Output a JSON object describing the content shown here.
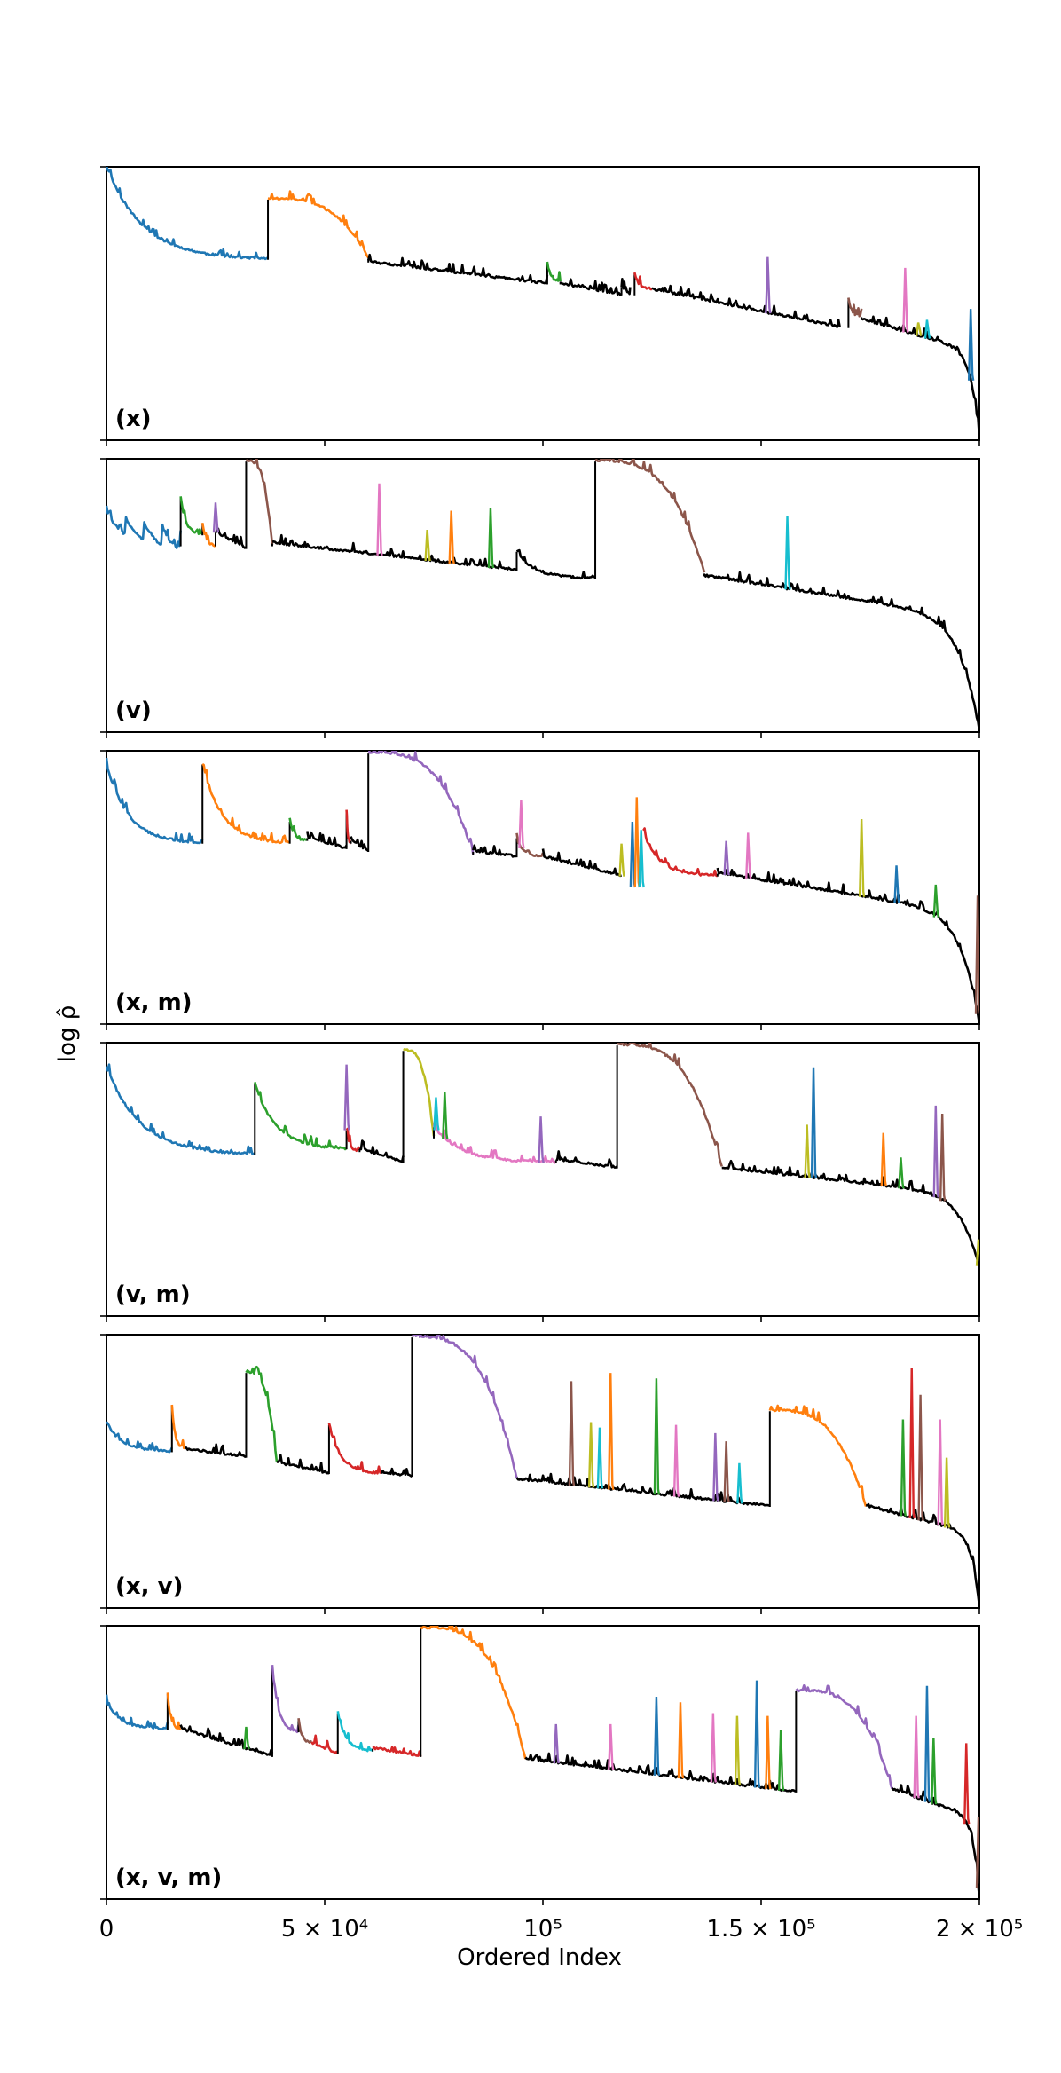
{
  "figure": {
    "ylabel": "log ρ̂",
    "xlabel": "Ordered Index"
  },
  "chart_data": {
    "type": "line",
    "title": "",
    "xlabel": "Ordered Index",
    "ylabel": "log ρ̂",
    "xlim": [
      0,
      200000
    ],
    "ylim": [
      0,
      1
    ],
    "y_ticks_labeled": false,
    "x_ticks": [
      {
        "value": 0,
        "label": "0"
      },
      {
        "value": 50000,
        "label": "5 × 10⁴"
      },
      {
        "value": 100000,
        "label": "10⁵"
      },
      {
        "value": 150000,
        "label": "1.5 × 10⁵"
      },
      {
        "value": 200000,
        "label": "2 × 10⁵"
      }
    ],
    "colors": {
      "blue": "#1f77b4",
      "orange": "#ff7f0e",
      "green": "#2ca02c",
      "red": "#d62728",
      "purple": "#9467bd",
      "brown": "#8c564b",
      "pink": "#e377c2",
      "olive": "#bcbd22",
      "cyan": "#17becf",
      "black": "#000000"
    },
    "panels": [
      {
        "label": "(x)",
        "segments": [
          {
            "color": "blue",
            "x0": 0,
            "x1": 37000,
            "y0": 1.0,
            "y1": 0.66,
            "shape": "decay"
          },
          {
            "color": "orange",
            "x0": 37000,
            "x1": 60000,
            "y0": 0.88,
            "y1": 0.66,
            "shape": "concave"
          },
          {
            "color": "black",
            "x0": 60000,
            "x1": 101000,
            "y0": 0.65,
            "y1": 0.57
          },
          {
            "color": "green",
            "x0": 101000,
            "x1": 104000,
            "y0": 0.65,
            "y1": 0.58,
            "shape": "decay"
          },
          {
            "color": "black",
            "x0": 104000,
            "x1": 118000,
            "y0": 0.57,
            "y1": 0.53
          },
          {
            "color": "black",
            "x0": 118000,
            "x1": 120000,
            "y0": 0.56,
            "y1": 0.53
          },
          {
            "color": "red",
            "x0": 121000,
            "x1": 125000,
            "y0": 0.61,
            "y1": 0.55,
            "shape": "decay"
          },
          {
            "color": "black",
            "x0": 125000,
            "x1": 168000,
            "y0": 0.55,
            "y1": 0.41
          },
          {
            "color": "brown",
            "x0": 170000,
            "x1": 173000,
            "y0": 0.52,
            "y1": 0.45,
            "shape": "decay"
          },
          {
            "color": "black",
            "x0": 173000,
            "x1": 200000,
            "y0": 0.44,
            "y1": 0.0,
            "shape": "tail"
          }
        ],
        "spikes": [
          {
            "color": "purple",
            "x": 151500,
            "y": 0.67
          },
          {
            "color": "pink",
            "x": 183000,
            "y": 0.63
          },
          {
            "color": "olive",
            "x": 186000,
            "y": 0.43
          },
          {
            "color": "cyan",
            "x": 188000,
            "y": 0.44
          },
          {
            "color": "blue",
            "x": 198000,
            "y": 0.48
          }
        ]
      },
      {
        "label": "(v)",
        "segments": [
          {
            "color": "blue",
            "x0": 0,
            "x1": 17000,
            "y0": 0.82,
            "y1": 0.68,
            "shape": "sawtooth"
          },
          {
            "color": "green",
            "x0": 17000,
            "x1": 22000,
            "y0": 0.86,
            "y1": 0.72,
            "shape": "decay"
          },
          {
            "color": "orange",
            "x0": 22000,
            "x1": 25000,
            "y0": 0.76,
            "y1": 0.68,
            "shape": "decay"
          },
          {
            "color": "black",
            "x0": 25000,
            "x1": 32000,
            "y0": 0.73,
            "y1": 0.67
          },
          {
            "color": "brown",
            "x0": 32000,
            "x1": 38000,
            "y0": 0.99,
            "y1": 0.68,
            "shape": "concave"
          },
          {
            "color": "black",
            "x0": 38000,
            "x1": 94000,
            "y0": 0.69,
            "y1": 0.59
          },
          {
            "color": "black",
            "x0": 94000,
            "x1": 112000,
            "y0": 0.66,
            "y1": 0.56,
            "shape": "decay"
          },
          {
            "color": "brown",
            "x0": 112000,
            "x1": 137000,
            "y0": 0.99,
            "y1": 0.58,
            "shape": "concave"
          },
          {
            "color": "black",
            "x0": 137000,
            "x1": 200000,
            "y0": 0.57,
            "y1": 0.0,
            "shape": "tail"
          }
        ],
        "spikes": [
          {
            "color": "purple",
            "x": 25000,
            "y": 0.84
          },
          {
            "color": "pink",
            "x": 62500,
            "y": 0.91
          },
          {
            "color": "olive",
            "x": 73500,
            "y": 0.74
          },
          {
            "color": "orange",
            "x": 79000,
            "y": 0.81
          },
          {
            "color": "green",
            "x": 88000,
            "y": 0.82
          },
          {
            "color": "cyan",
            "x": 156000,
            "y": 0.79
          }
        ]
      },
      {
        "label": "(x, m)",
        "segments": [
          {
            "color": "blue",
            "x0": 0,
            "x1": 22000,
            "y0": 0.95,
            "y1": 0.66,
            "shape": "decay"
          },
          {
            "color": "orange",
            "x0": 22000,
            "x1": 42000,
            "y0": 0.95,
            "y1": 0.66,
            "shape": "decay"
          },
          {
            "color": "green",
            "x0": 42000,
            "x1": 46000,
            "y0": 0.74,
            "y1": 0.67,
            "shape": "decay"
          },
          {
            "color": "black",
            "x0": 46000,
            "x1": 55000,
            "y0": 0.68,
            "y1": 0.64
          },
          {
            "color": "red",
            "x0": 55000,
            "x1": 56000,
            "y0": 0.78,
            "y1": 0.66,
            "shape": "decay"
          },
          {
            "color": "black",
            "x0": 56000,
            "x1": 60000,
            "y0": 0.67,
            "y1": 0.63
          },
          {
            "color": "purple",
            "x0": 60000,
            "x1": 84000,
            "y0": 0.99,
            "y1": 0.62,
            "shape": "concave"
          },
          {
            "color": "black",
            "x0": 84000,
            "x1": 94000,
            "y0": 0.63,
            "y1": 0.61
          },
          {
            "color": "brown",
            "x0": 94000,
            "x1": 100000,
            "y0": 0.68,
            "y1": 0.61,
            "shape": "decay"
          },
          {
            "color": "black",
            "x0": 100000,
            "x1": 118000,
            "y0": 0.61,
            "y1": 0.54
          },
          {
            "color": "red",
            "x0": 123000,
            "x1": 140000,
            "y0": 0.7,
            "y1": 0.54,
            "shape": "decay"
          },
          {
            "color": "black",
            "x0": 140000,
            "x1": 200000,
            "y0": 0.55,
            "y1": 0.0,
            "shape": "tail"
          }
        ],
        "spikes": [
          {
            "color": "pink",
            "x": 95000,
            "y": 0.82
          },
          {
            "color": "olive",
            "x": 118000,
            "y": 0.66
          },
          {
            "color": "blue",
            "x": 120500,
            "y": 0.74
          },
          {
            "color": "orange",
            "x": 121500,
            "y": 0.83
          },
          {
            "color": "cyan",
            "x": 122500,
            "y": 0.71
          },
          {
            "color": "purple",
            "x": 142000,
            "y": 0.67
          },
          {
            "color": "pink",
            "x": 147000,
            "y": 0.7
          },
          {
            "color": "olive",
            "x": 173000,
            "y": 0.75
          },
          {
            "color": "blue",
            "x": 181000,
            "y": 0.58
          },
          {
            "color": "green",
            "x": 190000,
            "y": 0.51
          },
          {
            "color": "brown",
            "x": 199600,
            "y": 0.47
          }
        ]
      },
      {
        "label": "(v, m)",
        "segments": [
          {
            "color": "blue",
            "x0": 0,
            "x1": 34000,
            "y0": 0.91,
            "y1": 0.59,
            "shape": "decay"
          },
          {
            "color": "green",
            "x0": 34000,
            "x1": 55000,
            "y0": 0.85,
            "y1": 0.61,
            "shape": "decay"
          },
          {
            "color": "red",
            "x0": 55000,
            "x1": 58000,
            "y0": 0.68,
            "y1": 0.6,
            "shape": "decay"
          },
          {
            "color": "black",
            "x0": 58000,
            "x1": 68000,
            "y0": 0.61,
            "y1": 0.56
          },
          {
            "color": "olive",
            "x0": 68000,
            "x1": 75000,
            "y0": 0.97,
            "y1": 0.65,
            "shape": "concave"
          },
          {
            "color": "pink",
            "x0": 75000,
            "x1": 103000,
            "y0": 0.69,
            "y1": 0.56,
            "shape": "decay"
          },
          {
            "color": "black",
            "x0": 103000,
            "x1": 117000,
            "y0": 0.57,
            "y1": 0.54
          },
          {
            "color": "brown",
            "x0": 117000,
            "x1": 141000,
            "y0": 0.99,
            "y1": 0.54,
            "shape": "concave"
          },
          {
            "color": "black",
            "x0": 141000,
            "x1": 200000,
            "y0": 0.54,
            "y1": 0.17,
            "shape": "tail"
          }
        ],
        "spikes": [
          {
            "color": "purple",
            "x": 55000,
            "y": 0.92
          },
          {
            "color": "cyan",
            "x": 75500,
            "y": 0.8
          },
          {
            "color": "green",
            "x": 77500,
            "y": 0.82
          },
          {
            "color": "purple",
            "x": 99500,
            "y": 0.73
          },
          {
            "color": "olive",
            "x": 160500,
            "y": 0.7
          },
          {
            "color": "blue",
            "x": 162000,
            "y": 0.91
          },
          {
            "color": "orange",
            "x": 178000,
            "y": 0.67
          },
          {
            "color": "green",
            "x": 182000,
            "y": 0.58
          },
          {
            "color": "purple",
            "x": 190000,
            "y": 0.77
          },
          {
            "color": "brown",
            "x": 191500,
            "y": 0.74
          },
          {
            "color": "olive",
            "x": 199800,
            "y": 0.28
          }
        ]
      },
      {
        "label": "(x, v)",
        "segments": [
          {
            "color": "blue",
            "x0": 0,
            "x1": 15000,
            "y0": 0.68,
            "y1": 0.57,
            "shape": "decay"
          },
          {
            "color": "orange",
            "x0": 15000,
            "x1": 18000,
            "y0": 0.74,
            "y1": 0.58,
            "shape": "decay"
          },
          {
            "color": "black",
            "x0": 18000,
            "x1": 32000,
            "y0": 0.58,
            "y1": 0.55
          },
          {
            "color": "green",
            "x0": 32000,
            "x1": 39000,
            "y0": 0.86,
            "y1": 0.53,
            "shape": "concave"
          },
          {
            "color": "black",
            "x0": 39000,
            "x1": 51000,
            "y0": 0.53,
            "y1": 0.49
          },
          {
            "color": "red",
            "x0": 51000,
            "x1": 63000,
            "y0": 0.67,
            "y1": 0.49,
            "shape": "decay"
          },
          {
            "color": "black",
            "x0": 63000,
            "x1": 70000,
            "y0": 0.49,
            "y1": 0.48
          },
          {
            "color": "purple",
            "x0": 70000,
            "x1": 94000,
            "y0": 0.99,
            "y1": 0.47,
            "shape": "concave"
          },
          {
            "color": "black",
            "x0": 94000,
            "x1": 152000,
            "y0": 0.47,
            "y1": 0.37
          },
          {
            "color": "orange",
            "x0": 152000,
            "x1": 174000,
            "y0": 0.72,
            "y1": 0.37,
            "shape": "concave"
          },
          {
            "color": "black",
            "x0": 174000,
            "x1": 200000,
            "y0": 0.37,
            "y1": 0.0,
            "shape": "tail"
          }
        ],
        "spikes": [
          {
            "color": "brown",
            "x": 106500,
            "y": 0.83
          },
          {
            "color": "olive",
            "x": 111000,
            "y": 0.68
          },
          {
            "color": "cyan",
            "x": 113000,
            "y": 0.66
          },
          {
            "color": "orange",
            "x": 115500,
            "y": 0.86
          },
          {
            "color": "green",
            "x": 126000,
            "y": 0.84
          },
          {
            "color": "pink",
            "x": 130500,
            "y": 0.67
          },
          {
            "color": "purple",
            "x": 139500,
            "y": 0.64
          },
          {
            "color": "brown",
            "x": 142000,
            "y": 0.61
          },
          {
            "color": "cyan",
            "x": 145000,
            "y": 0.53
          },
          {
            "color": "green",
            "x": 182500,
            "y": 0.69
          },
          {
            "color": "red",
            "x": 184500,
            "y": 0.88
          },
          {
            "color": "brown",
            "x": 186500,
            "y": 0.78
          },
          {
            "color": "pink",
            "x": 191000,
            "y": 0.69
          },
          {
            "color": "olive",
            "x": 192500,
            "y": 0.55
          }
        ]
      },
      {
        "label": "(x, v, m)",
        "segments": [
          {
            "color": "blue",
            "x0": 0,
            "x1": 14000,
            "y0": 0.72,
            "y1": 0.62,
            "shape": "decay"
          },
          {
            "color": "orange",
            "x0": 14000,
            "x1": 17000,
            "y0": 0.75,
            "y1": 0.62,
            "shape": "decay"
          },
          {
            "color": "black",
            "x0": 17000,
            "x1": 38000,
            "y0": 0.62,
            "y1": 0.52
          },
          {
            "color": "purple",
            "x0": 38000,
            "x1": 44000,
            "y0": 0.85,
            "y1": 0.61,
            "shape": "decay"
          },
          {
            "color": "brown",
            "x0": 44000,
            "x1": 47000,
            "y0": 0.66,
            "y1": 0.57,
            "shape": "decay"
          },
          {
            "color": "red",
            "x0": 47000,
            "x1": 53000,
            "y0": 0.57,
            "y1": 0.53
          },
          {
            "color": "cyan",
            "x0": 53000,
            "x1": 61000,
            "y0": 0.68,
            "y1": 0.54,
            "shape": "decay"
          },
          {
            "color": "red",
            "x0": 61000,
            "x1": 72000,
            "y0": 0.55,
            "y1": 0.52
          },
          {
            "color": "orange",
            "x0": 72000,
            "x1": 96000,
            "y0": 0.99,
            "y1": 0.51,
            "shape": "concave"
          },
          {
            "color": "black",
            "x0": 96000,
            "x1": 158000,
            "y0": 0.51,
            "y1": 0.39
          },
          {
            "color": "purple",
            "x0": 158000,
            "x1": 180000,
            "y0": 0.76,
            "y1": 0.4,
            "shape": "concave"
          },
          {
            "color": "black",
            "x0": 180000,
            "x1": 200000,
            "y0": 0.4,
            "y1": 0.0,
            "shape": "tail"
          }
        ],
        "spikes": [
          {
            "color": "green",
            "x": 32000,
            "y": 0.63
          },
          {
            "color": "purple",
            "x": 103000,
            "y": 0.64
          },
          {
            "color": "pink",
            "x": 115500,
            "y": 0.64
          },
          {
            "color": "blue",
            "x": 126000,
            "y": 0.74
          },
          {
            "color": "orange",
            "x": 131500,
            "y": 0.72
          },
          {
            "color": "pink",
            "x": 139000,
            "y": 0.68
          },
          {
            "color": "olive",
            "x": 144500,
            "y": 0.67
          },
          {
            "color": "blue",
            "x": 149000,
            "y": 0.8
          },
          {
            "color": "orange",
            "x": 151500,
            "y": 0.67
          },
          {
            "color": "green",
            "x": 154500,
            "y": 0.62
          },
          {
            "color": "pink",
            "x": 185500,
            "y": 0.67
          },
          {
            "color": "blue",
            "x": 188000,
            "y": 0.78
          },
          {
            "color": "green",
            "x": 189500,
            "y": 0.59
          },
          {
            "color": "red",
            "x": 197000,
            "y": 0.57
          },
          {
            "color": "brown",
            "x": 199800,
            "y": 0.3
          }
        ]
      }
    ]
  }
}
